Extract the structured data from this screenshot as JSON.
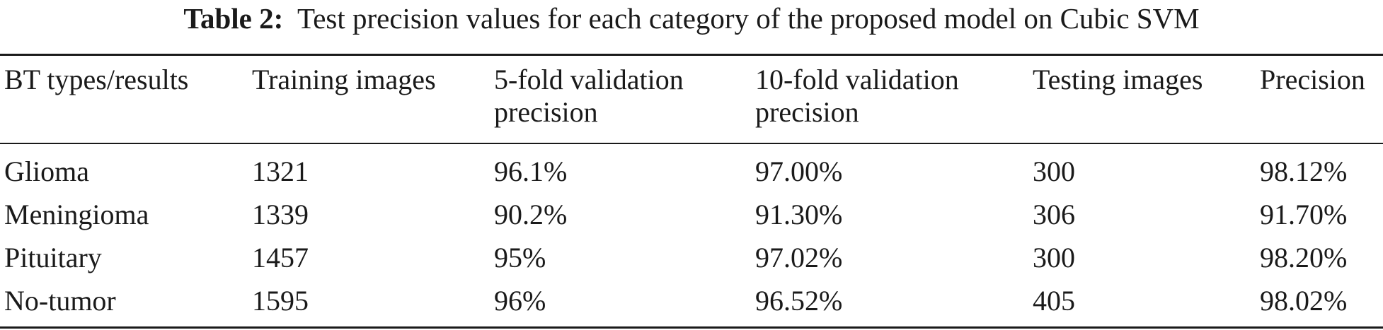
{
  "caption": {
    "label": "Table 2:",
    "text": "Test precision values for each category of the proposed model on Cubic SVM"
  },
  "table": {
    "headers": [
      {
        "line1": "BT types/results",
        "line2": ""
      },
      {
        "line1": "Training images",
        "line2": ""
      },
      {
        "line1": "5-fold validation",
        "line2": "precision"
      },
      {
        "line1": "10-fold validation",
        "line2": "precision"
      },
      {
        "line1": "Testing images",
        "line2": ""
      },
      {
        "line1": "Precision",
        "line2": ""
      }
    ],
    "rows": [
      [
        "Glioma",
        "1321",
        "96.1%",
        "97.00%",
        "300",
        "98.12%"
      ],
      [
        "Meningioma",
        "1339",
        "90.2%",
        "91.30%",
        "306",
        "91.70%"
      ],
      [
        "Pituitary",
        "1457",
        "95%",
        "97.02%",
        "300",
        "98.20%"
      ],
      [
        "No-tumor",
        "1595",
        "96%",
        "96.52%",
        "405",
        "98.02%"
      ]
    ]
  }
}
